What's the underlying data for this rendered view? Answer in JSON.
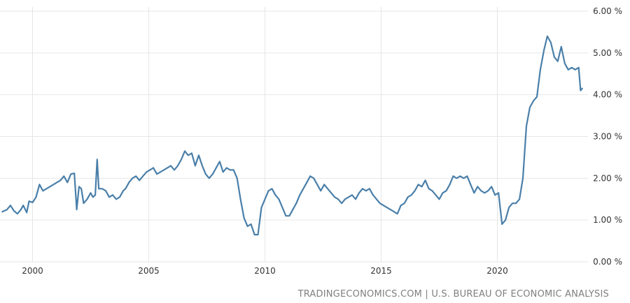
{
  "source_text": "TRADINGECONOMICS.COM | U.S. BUREAU OF ECONOMIC ANALYSIS",
  "colors": {
    "line": "#4a7fa9",
    "grid": "#e6e6e6",
    "tick": "#333333",
    "source": "#7f7f7f"
  },
  "chart_data": {
    "type": "line",
    "title": "",
    "xlabel": "",
    "ylabel": "",
    "ylim": [
      0,
      6
    ],
    "xlim": [
      1998.6,
      2023.9
    ],
    "grid": true,
    "y_ticks": [
      {
        "value": 0,
        "label": "0.00 %"
      },
      {
        "value": 1,
        "label": "1.00 %"
      },
      {
        "value": 2,
        "label": "2.00 %"
      },
      {
        "value": 3,
        "label": "3.00 %"
      },
      {
        "value": 4,
        "label": "4.00 %"
      },
      {
        "value": 5,
        "label": "5.00 %"
      },
      {
        "value": 6,
        "label": "6.00 %"
      }
    ],
    "x_ticks": [
      {
        "value": 2000,
        "label": "2000"
      },
      {
        "value": 2005,
        "label": "2005"
      },
      {
        "value": 2010,
        "label": "2010"
      },
      {
        "value": 2015,
        "label": "2015"
      },
      {
        "value": 2020,
        "label": "2020"
      }
    ],
    "series": [
      {
        "points": [
          [
            1998.7,
            1.2
          ],
          [
            1998.9,
            1.25
          ],
          [
            1999.05,
            1.35
          ],
          [
            1999.2,
            1.22
          ],
          [
            1999.35,
            1.15
          ],
          [
            1999.5,
            1.25
          ],
          [
            1999.6,
            1.35
          ],
          [
            1999.75,
            1.18
          ],
          [
            1999.85,
            1.45
          ],
          [
            2000.0,
            1.42
          ],
          [
            2000.15,
            1.55
          ],
          [
            2000.3,
            1.85
          ],
          [
            2000.45,
            1.7
          ],
          [
            2000.6,
            1.75
          ],
          [
            2000.75,
            1.8
          ],
          [
            2000.9,
            1.85
          ],
          [
            2001.05,
            1.9
          ],
          [
            2001.2,
            1.95
          ],
          [
            2001.35,
            2.05
          ],
          [
            2001.5,
            1.9
          ],
          [
            2001.65,
            2.1
          ],
          [
            2001.8,
            2.12
          ],
          [
            2001.9,
            1.25
          ],
          [
            2002.0,
            1.8
          ],
          [
            2002.1,
            1.75
          ],
          [
            2002.2,
            1.4
          ],
          [
            2002.35,
            1.5
          ],
          [
            2002.5,
            1.65
          ],
          [
            2002.6,
            1.55
          ],
          [
            2002.7,
            1.6
          ],
          [
            2002.78,
            2.45
          ],
          [
            2002.85,
            1.75
          ],
          [
            2003.0,
            1.75
          ],
          [
            2003.15,
            1.7
          ],
          [
            2003.3,
            1.55
          ],
          [
            2003.45,
            1.6
          ],
          [
            2003.6,
            1.5
          ],
          [
            2003.75,
            1.55
          ],
          [
            2003.9,
            1.7
          ],
          [
            2004.0,
            1.75
          ],
          [
            2004.15,
            1.9
          ],
          [
            2004.3,
            2.0
          ],
          [
            2004.45,
            2.05
          ],
          [
            2004.6,
            1.95
          ],
          [
            2004.75,
            2.05
          ],
          [
            2004.9,
            2.15
          ],
          [
            2005.05,
            2.2
          ],
          [
            2005.2,
            2.25
          ],
          [
            2005.35,
            2.1
          ],
          [
            2005.5,
            2.15
          ],
          [
            2005.65,
            2.2
          ],
          [
            2005.8,
            2.25
          ],
          [
            2005.95,
            2.3
          ],
          [
            2006.1,
            2.2
          ],
          [
            2006.25,
            2.3
          ],
          [
            2006.4,
            2.45
          ],
          [
            2006.55,
            2.65
          ],
          [
            2006.7,
            2.55
          ],
          [
            2006.85,
            2.6
          ],
          [
            2007.0,
            2.3
          ],
          [
            2007.15,
            2.55
          ],
          [
            2007.3,
            2.3
          ],
          [
            2007.45,
            2.1
          ],
          [
            2007.6,
            2.0
          ],
          [
            2007.75,
            2.1
          ],
          [
            2007.9,
            2.25
          ],
          [
            2008.05,
            2.4
          ],
          [
            2008.2,
            2.15
          ],
          [
            2008.35,
            2.25
          ],
          [
            2008.5,
            2.2
          ],
          [
            2008.65,
            2.2
          ],
          [
            2008.8,
            2.0
          ],
          [
            2008.95,
            1.5
          ],
          [
            2009.1,
            1.05
          ],
          [
            2009.25,
            0.85
          ],
          [
            2009.4,
            0.9
          ],
          [
            2009.55,
            0.65
          ],
          [
            2009.7,
            0.65
          ],
          [
            2009.85,
            1.3
          ],
          [
            2010.0,
            1.5
          ],
          [
            2010.15,
            1.7
          ],
          [
            2010.3,
            1.75
          ],
          [
            2010.45,
            1.6
          ],
          [
            2010.6,
            1.5
          ],
          [
            2010.75,
            1.3
          ],
          [
            2010.9,
            1.1
          ],
          [
            2011.05,
            1.1
          ],
          [
            2011.2,
            1.25
          ],
          [
            2011.35,
            1.4
          ],
          [
            2011.5,
            1.6
          ],
          [
            2011.65,
            1.75
          ],
          [
            2011.8,
            1.9
          ],
          [
            2011.95,
            2.05
          ],
          [
            2012.1,
            2.0
          ],
          [
            2012.25,
            1.85
          ],
          [
            2012.4,
            1.7
          ],
          [
            2012.55,
            1.85
          ],
          [
            2012.7,
            1.75
          ],
          [
            2012.85,
            1.65
          ],
          [
            2013.0,
            1.55
          ],
          [
            2013.15,
            1.5
          ],
          [
            2013.3,
            1.4
          ],
          [
            2013.45,
            1.5
          ],
          [
            2013.6,
            1.55
          ],
          [
            2013.75,
            1.6
          ],
          [
            2013.9,
            1.5
          ],
          [
            2014.05,
            1.65
          ],
          [
            2014.2,
            1.75
          ],
          [
            2014.35,
            1.7
          ],
          [
            2014.5,
            1.75
          ],
          [
            2014.65,
            1.6
          ],
          [
            2014.8,
            1.5
          ],
          [
            2014.95,
            1.4
          ],
          [
            2015.1,
            1.35
          ],
          [
            2015.25,
            1.3
          ],
          [
            2015.4,
            1.25
          ],
          [
            2015.55,
            1.2
          ],
          [
            2015.7,
            1.15
          ],
          [
            2015.85,
            1.35
          ],
          [
            2016.0,
            1.4
          ],
          [
            2016.15,
            1.55
          ],
          [
            2016.3,
            1.6
          ],
          [
            2016.45,
            1.7
          ],
          [
            2016.6,
            1.85
          ],
          [
            2016.75,
            1.8
          ],
          [
            2016.9,
            1.95
          ],
          [
            2017.05,
            1.75
          ],
          [
            2017.2,
            1.7
          ],
          [
            2017.35,
            1.6
          ],
          [
            2017.5,
            1.5
          ],
          [
            2017.65,
            1.65
          ],
          [
            2017.8,
            1.7
          ],
          [
            2017.95,
            1.85
          ],
          [
            2018.1,
            2.05
          ],
          [
            2018.25,
            2.0
          ],
          [
            2018.4,
            2.05
          ],
          [
            2018.55,
            2.0
          ],
          [
            2018.7,
            2.05
          ],
          [
            2018.85,
            1.85
          ],
          [
            2019.0,
            1.65
          ],
          [
            2019.15,
            1.8
          ],
          [
            2019.3,
            1.7
          ],
          [
            2019.45,
            1.65
          ],
          [
            2019.6,
            1.7
          ],
          [
            2019.75,
            1.8
          ],
          [
            2019.9,
            1.6
          ],
          [
            2020.05,
            1.65
          ],
          [
            2020.2,
            0.9
          ],
          [
            2020.35,
            1.0
          ],
          [
            2020.5,
            1.3
          ],
          [
            2020.65,
            1.4
          ],
          [
            2020.8,
            1.4
          ],
          [
            2020.95,
            1.5
          ],
          [
            2021.1,
            2.0
          ],
          [
            2021.25,
            3.25
          ],
          [
            2021.4,
            3.7
          ],
          [
            2021.55,
            3.85
          ],
          [
            2021.7,
            3.95
          ],
          [
            2021.85,
            4.6
          ],
          [
            2022.0,
            5.05
          ],
          [
            2022.15,
            5.4
          ],
          [
            2022.3,
            5.25
          ],
          [
            2022.45,
            4.9
          ],
          [
            2022.6,
            4.8
          ],
          [
            2022.75,
            5.15
          ],
          [
            2022.9,
            4.75
          ],
          [
            2023.05,
            4.6
          ],
          [
            2023.2,
            4.65
          ],
          [
            2023.35,
            4.6
          ],
          [
            2023.5,
            4.65
          ],
          [
            2023.58,
            4.1
          ],
          [
            2023.65,
            4.15
          ]
        ]
      }
    ]
  }
}
